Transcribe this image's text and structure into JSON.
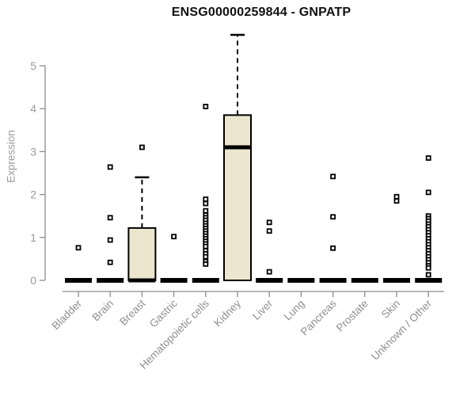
{
  "chart_data": {
    "type": "boxplot",
    "title": "ENSG00000259844 - GNPATP",
    "ylabel": "Expression",
    "xlabel": "",
    "ylim": [
      0,
      5
    ],
    "yticks": [
      0,
      1,
      2,
      3,
      4,
      5
    ],
    "grid": false,
    "legend": "none",
    "box_fill_color": "#ece6ce",
    "box_stroke_color": "#000000",
    "axis_color": "#8c8c8c",
    "tick_text_color": "#9a9a9a",
    "categories": [
      "Bladder",
      "Brain",
      "Breast",
      "Gastric",
      "Hematopoietic cells",
      "Kidney",
      "Liver",
      "Lung",
      "Pancreas",
      "Prostate",
      "Skin",
      "Unknown / Other"
    ],
    "boxes": [
      {
        "category": "Bladder",
        "q1": 0,
        "median": 0,
        "q3": 0,
        "whisker_low": 0,
        "whisker_high": 0,
        "outliers": [
          0.76
        ]
      },
      {
        "category": "Brain",
        "q1": 0,
        "median": 0,
        "q3": 0,
        "whisker_low": 0,
        "whisker_high": 0,
        "outliers": [
          2.64,
          1.46,
          0.94,
          0.42
        ]
      },
      {
        "category": "Breast",
        "q1": 0,
        "median": 0,
        "q3": 1.22,
        "whisker_low": 0,
        "whisker_high": 2.4,
        "outliers": [
          3.1
        ]
      },
      {
        "category": "Gastric",
        "q1": 0,
        "median": 0,
        "q3": 0,
        "whisker_low": 0,
        "whisker_high": 0,
        "outliers": [
          1.02
        ]
      },
      {
        "category": "Hematopoietic cells",
        "q1": 0,
        "median": 0,
        "q3": 0,
        "whisker_low": 0,
        "whisker_high": 0,
        "outliers": [
          4.05,
          1.89,
          1.79,
          1.62,
          1.52,
          1.46,
          1.4,
          1.33,
          1.27,
          1.21,
          1.15,
          1.09,
          1.03,
          0.97,
          0.91,
          0.85,
          0.79,
          0.69,
          0.62,
          0.55,
          0.44,
          0.38
        ]
      },
      {
        "category": "Kidney",
        "q1": 0,
        "median": 3.1,
        "q3": 3.85,
        "whisker_low": 0,
        "whisker_high": 5.72,
        "outliers": []
      },
      {
        "category": "Liver",
        "q1": 0,
        "median": 0,
        "q3": 0,
        "whisker_low": 0,
        "whisker_high": 0,
        "outliers": [
          1.35,
          1.15,
          0.2
        ]
      },
      {
        "category": "Lung",
        "q1": 0,
        "median": 0,
        "q3": 0,
        "whisker_low": 0,
        "whisker_high": 0,
        "outliers": []
      },
      {
        "category": "Pancreas",
        "q1": 0,
        "median": 0,
        "q3": 0,
        "whisker_low": 0,
        "whisker_high": 0,
        "outliers": [
          2.42,
          1.48,
          0.75
        ]
      },
      {
        "category": "Prostate",
        "q1": 0,
        "median": 0,
        "q3": 0,
        "whisker_low": 0,
        "whisker_high": 0,
        "outliers": []
      },
      {
        "category": "Skin",
        "q1": 0,
        "median": 0,
        "q3": 0,
        "whisker_low": 0,
        "whisker_high": 0,
        "outliers": [
          1.95,
          1.85
        ]
      },
      {
        "category": "Unknown / Other",
        "q1": 0,
        "median": 0,
        "q3": 0,
        "whisker_low": 0,
        "whisker_high": 0,
        "outliers": [
          2.85,
          2.05,
          1.5,
          1.44,
          1.38,
          1.31,
          1.25,
          1.18,
          1.11,
          1.04,
          0.97,
          0.9,
          0.83,
          0.76,
          0.69,
          0.62,
          0.55,
          0.48,
          0.41,
          0.34,
          0.29,
          0.13
        ]
      }
    ]
  }
}
